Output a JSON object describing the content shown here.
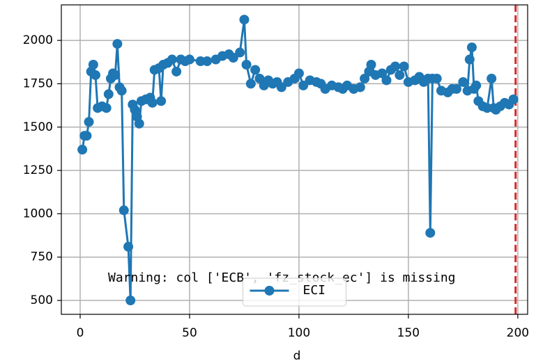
{
  "chart_data": {
    "type": "line",
    "xlabel": "d",
    "annotation": "Warning: col ['ECB', 'fz_stock_ec'] is missing",
    "x": [
      1,
      2,
      3,
      4,
      5,
      6,
      7,
      8,
      10,
      12,
      13,
      14,
      15,
      16,
      17,
      18,
      19,
      20,
      22,
      23,
      24,
      25,
      26,
      27,
      28,
      30,
      32,
      33,
      34,
      36,
      37,
      38,
      40,
      42,
      44,
      46,
      48,
      50,
      55,
      58,
      62,
      65,
      68,
      70,
      73,
      75,
      76,
      78,
      80,
      82,
      84,
      86,
      88,
      90,
      92,
      95,
      98,
      100,
      102,
      105,
      108,
      110,
      112,
      115,
      118,
      120,
      122,
      125,
      128,
      130,
      132,
      133,
      135,
      138,
      140,
      142,
      144,
      146,
      148,
      150,
      153,
      155,
      157,
      159,
      160,
      161,
      163,
      165,
      168,
      170,
      172,
      175,
      177,
      178,
      179,
      180,
      181,
      182,
      184,
      186,
      188,
      189,
      190,
      192,
      194,
      196,
      198
    ],
    "series": [
      {
        "name": "ECI",
        "color": "#1f77b4",
        "values": [
          1370,
          1450,
          1450,
          1530,
          1820,
          1860,
          1800,
          1610,
          1620,
          1610,
          1690,
          1780,
          1810,
          1800,
          1980,
          1730,
          1710,
          1020,
          810,
          500,
          1630,
          1600,
          1560,
          1520,
          1650,
          1660,
          1670,
          1640,
          1830,
          1840,
          1650,
          1860,
          1870,
          1890,
          1820,
          1890,
          1880,
          1890,
          1880,
          1880,
          1890,
          1910,
          1920,
          1900,
          1930,
          2120,
          1860,
          1750,
          1830,
          1780,
          1740,
          1770,
          1750,
          1760,
          1730,
          1760,
          1780,
          1810,
          1740,
          1770,
          1760,
          1750,
          1720,
          1740,
          1730,
          1720,
          1740,
          1720,
          1730,
          1780,
          1820,
          1860,
          1800,
          1810,
          1770,
          1830,
          1850,
          1800,
          1850,
          1760,
          1770,
          1790,
          1760,
          1780,
          890,
          1780,
          1780,
          1710,
          1700,
          1720,
          1720,
          1760,
          1710,
          1890,
          1960,
          1720,
          1740,
          1650,
          1620,
          1610,
          1780,
          1610,
          1600,
          1620,
          1640,
          1630,
          1660
        ]
      }
    ],
    "vline": 199,
    "vline_color": "#d62728",
    "xlim": [
      -8.6,
      204.5
    ],
    "ylim": [
      420,
      2205
    ],
    "xticks": [
      0,
      50,
      100,
      150,
      200
    ],
    "yticks": [
      500,
      750,
      1000,
      1250,
      1500,
      1750,
      2000
    ],
    "grid": true,
    "legend": "lower center"
  }
}
